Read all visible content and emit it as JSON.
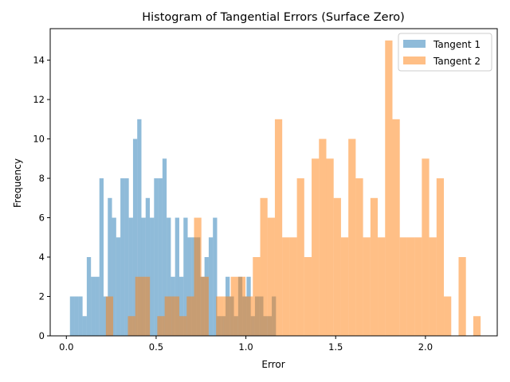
{
  "chart_data": {
    "type": "bar",
    "subtype": "overlaid-histogram",
    "title": "Histogram of Tangential Errors (Surface Zero)",
    "xlabel": "Error",
    "ylabel": "Frequency",
    "xlim": [
      -0.09,
      2.4
    ],
    "ylim": [
      0,
      15.6
    ],
    "xticks": [
      0.0,
      0.5,
      1.0,
      1.5,
      2.0
    ],
    "xtick_labels": [
      "0.0",
      "0.5",
      "1.0",
      "1.5",
      "2.0"
    ],
    "yticks": [
      0,
      2,
      4,
      6,
      8,
      10,
      12,
      14
    ],
    "ytick_labels": [
      "0",
      "2",
      "4",
      "6",
      "8",
      "10",
      "12",
      "14"
    ],
    "grid": false,
    "legend_position": "top-right",
    "series": [
      {
        "name": "Tangent 1",
        "color": "#1f77b4",
        "opacity": 0.5,
        "bins": {
          "start": 0.02,
          "width": 0.02342,
          "counts": [
            2,
            2,
            2,
            1,
            4,
            3,
            3,
            8,
            2,
            7,
            6,
            5,
            8,
            8,
            6,
            10,
            11,
            6,
            7,
            6,
            8,
            8,
            9,
            6,
            3,
            6,
            3,
            6,
            5,
            5,
            5,
            3,
            4,
            5,
            6,
            1,
            1,
            3,
            2,
            1,
            3,
            2,
            3,
            1,
            2,
            2,
            1,
            1,
            2
          ]
        }
      },
      {
        "name": "Tangent 2",
        "color": "#ff7f0e",
        "opacity": 0.5,
        "bins": {
          "start": 0.22,
          "width": 0.04093,
          "counts": [
            2,
            0,
            0,
            1,
            3,
            3,
            0,
            1,
            2,
            2,
            1,
            2,
            6,
            3,
            0,
            2,
            2,
            3,
            3,
            2,
            4,
            7,
            6,
            11,
            5,
            5,
            8,
            4,
            9,
            10,
            9,
            7,
            5,
            10,
            8,
            5,
            7,
            5,
            15,
            11,
            5,
            5,
            5,
            9,
            5,
            8,
            2,
            0,
            4,
            0,
            1
          ]
        }
      }
    ]
  }
}
